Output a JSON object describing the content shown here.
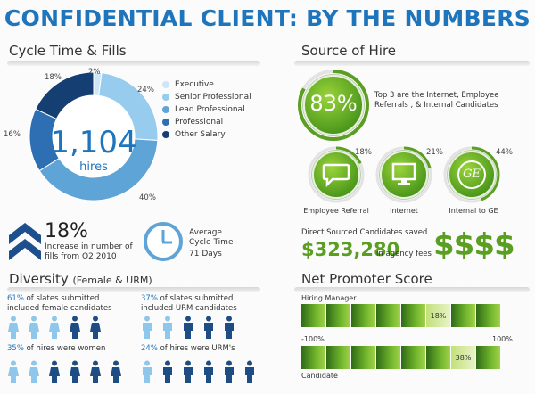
{
  "title": "CONFIDENTIAL CLIENT: BY THE NUMBERS",
  "cycle": {
    "heading": "Cycle Time & Fills",
    "total": "1,104",
    "total_unit": "hires",
    "donut": [
      {
        "name": "Executive",
        "value": 2,
        "label": "2%",
        "color": "#cfe6f7"
      },
      {
        "name": "Senior Professional",
        "value": 24,
        "label": "24%",
        "color": "#98ccef"
      },
      {
        "name": "Lead Professional",
        "value": 40,
        "label": "40%",
        "color": "#5ea4d6"
      },
      {
        "name": "Professional",
        "value": 16,
        "label": "16%",
        "color": "#2e6fb3"
      },
      {
        "name": "Other Salary",
        "value": 18,
        "label": "18%",
        "color": "#153f73"
      }
    ],
    "increase_pct": "18%",
    "increase_text": "Increase in number of fills from Q2 2010",
    "avg_label": "Average Cycle Time",
    "avg_value": "71 Days"
  },
  "source": {
    "heading": "Source of Hire",
    "main_pct": "83%",
    "main_text": "Top 3 are the Internet, Employee Referrals , & Internal Candidates",
    "items": [
      {
        "pct": "18%",
        "label": "Employee Referral",
        "value": 18
      },
      {
        "pct": "21%",
        "label": "Internet",
        "value": 21
      },
      {
        "pct": "44%",
        "label": "Internal to GE",
        "value": 44
      }
    ],
    "saved_text": "Direct Sourced Candidates saved",
    "saved_amount": "$323,280",
    "saved_suffix": "in agency fees",
    "dollars": "$$$$",
    "ge_logo": "GE"
  },
  "diversity": {
    "heading": "Diversity",
    "heading_note": "(Female & URM)",
    "female_slates_pct": "61%",
    "female_slates_text": "of slates submitted included female candidates",
    "urm_slates_pct": "37%",
    "urm_slates_text": "of slates submitted included URM candidates",
    "women_hires_pct": "35%",
    "women_hires_text": "of hires were women",
    "urm_hires_pct": "24%",
    "urm_hires_text": "of hires were URM's"
  },
  "nps": {
    "heading": "Net Promoter Score",
    "hiring_manager_label": "Hiring Manager",
    "hiring_manager_score": "18%",
    "candidate_label": "Candidate",
    "candidate_score": "38%",
    "min_label": "-100%",
    "max_label": "100%"
  }
}
